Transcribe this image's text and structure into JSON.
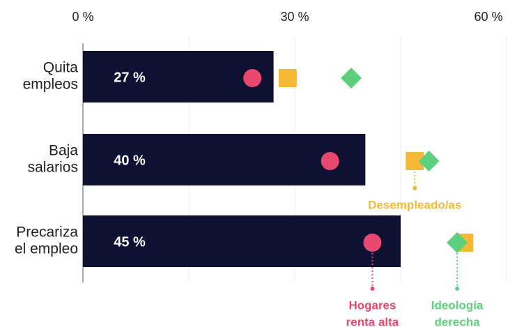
{
  "chart_data": {
    "type": "bar",
    "categories": [
      [
        "Quita",
        "empleos"
      ],
      [
        "Baja",
        "salarios"
      ],
      [
        "Precariza",
        "el empleo"
      ]
    ],
    "values": [
      27,
      40,
      45
    ],
    "value_labels": [
      "27 %",
      "40 %",
      "45 %"
    ],
    "color": "#0f1133",
    "xlim": [
      0,
      60
    ],
    "xticks": [
      {
        "value": 0,
        "label": "0 %"
      },
      {
        "value": 30,
        "label": "30 %"
      },
      {
        "value": 60,
        "label": "60 %"
      }
    ],
    "xminor": [
      15,
      45
    ],
    "grid": true,
    "series": [
      {
        "name": [
          "Hogares",
          "renta alta"
        ],
        "color": "#e8476e",
        "marker": "circle",
        "values": [
          24,
          35,
          41
        ],
        "label_at": 2
      },
      {
        "name": [
          "Desempleado/as"
        ],
        "color": "#f6b935",
        "marker": "square",
        "values": [
          29,
          47,
          54
        ],
        "label_at": 1
      },
      {
        "name": [
          "Ideología",
          "derecha"
        ],
        "color": "#5dd07d",
        "marker": "diamond",
        "values": [
          38,
          49,
          53
        ],
        "label_at": 2
      }
    ]
  }
}
